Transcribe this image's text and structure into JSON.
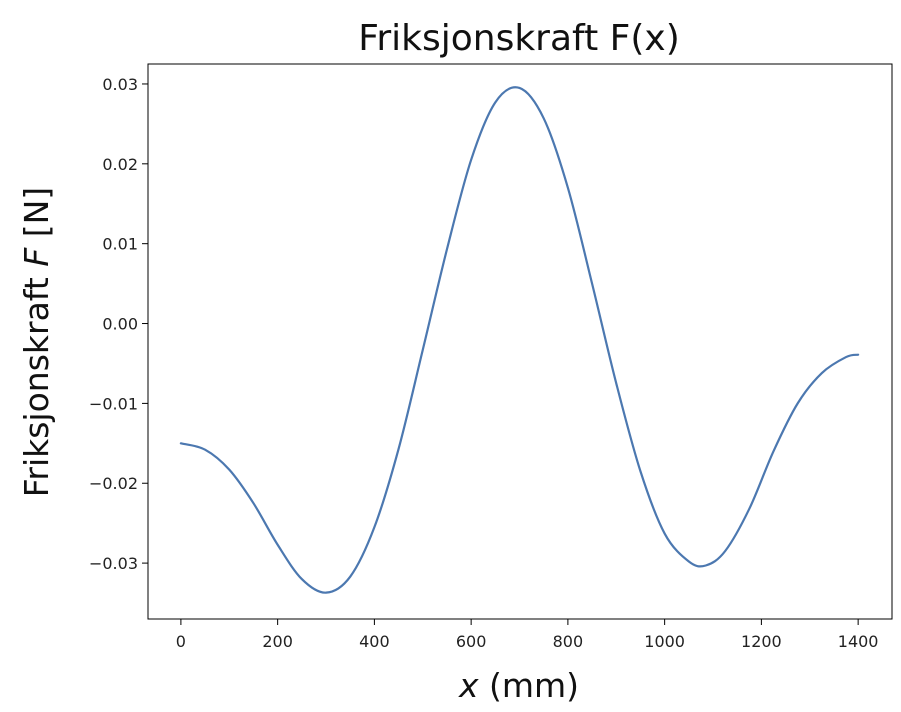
{
  "chart_data": {
    "type": "line",
    "title": "Friksjonskraft F(x)",
    "xlabel": {
      "pre": "",
      "var": "x",
      "post": " (mm)"
    },
    "ylabel": {
      "pre": "Friksjonskraft ",
      "var": "F",
      "post": " [N]"
    },
    "xlim": [
      -68,
      1470
    ],
    "ylim": [
      -0.037,
      0.0325
    ],
    "x_ticks": [
      0,
      200,
      400,
      600,
      800,
      1000,
      1200,
      1400
    ],
    "y_ticks": [
      -0.03,
      -0.02,
      -0.01,
      0.0,
      0.01,
      0.02,
      0.03
    ],
    "x_tick_labels": [
      "0",
      "200",
      "400",
      "600",
      "800",
      "1000",
      "1200",
      "1400"
    ],
    "y_tick_labels": [
      "−0.03",
      "−0.02",
      "−0.01",
      "0.00",
      "0.01",
      "0.02",
      "0.03"
    ],
    "grid": false,
    "line_color": "#4c78b0",
    "series": [
      {
        "x": [
          0,
          50,
          100,
          150,
          200,
          250,
          300,
          350,
          400,
          450,
          500,
          550,
          600,
          650,
          700,
          750,
          800,
          850,
          900,
          950,
          1000,
          1050,
          1085,
          1125,
          1175,
          1225,
          1275,
          1325,
          1375,
          1400
        ],
        "y": [
          -0.015,
          -0.0158,
          -0.0183,
          -0.0225,
          -0.0277,
          -0.032,
          -0.0337,
          -0.0317,
          -0.0255,
          -0.0157,
          -0.0033,
          0.0093,
          0.0205,
          0.0277,
          0.0295,
          0.0257,
          0.017,
          0.005,
          -0.0075,
          -0.0185,
          -0.0263,
          -0.0298,
          -0.0303,
          -0.0285,
          -0.0232,
          -0.016,
          -0.01,
          -0.0062,
          -0.0042,
          -0.0039
        ]
      }
    ]
  }
}
